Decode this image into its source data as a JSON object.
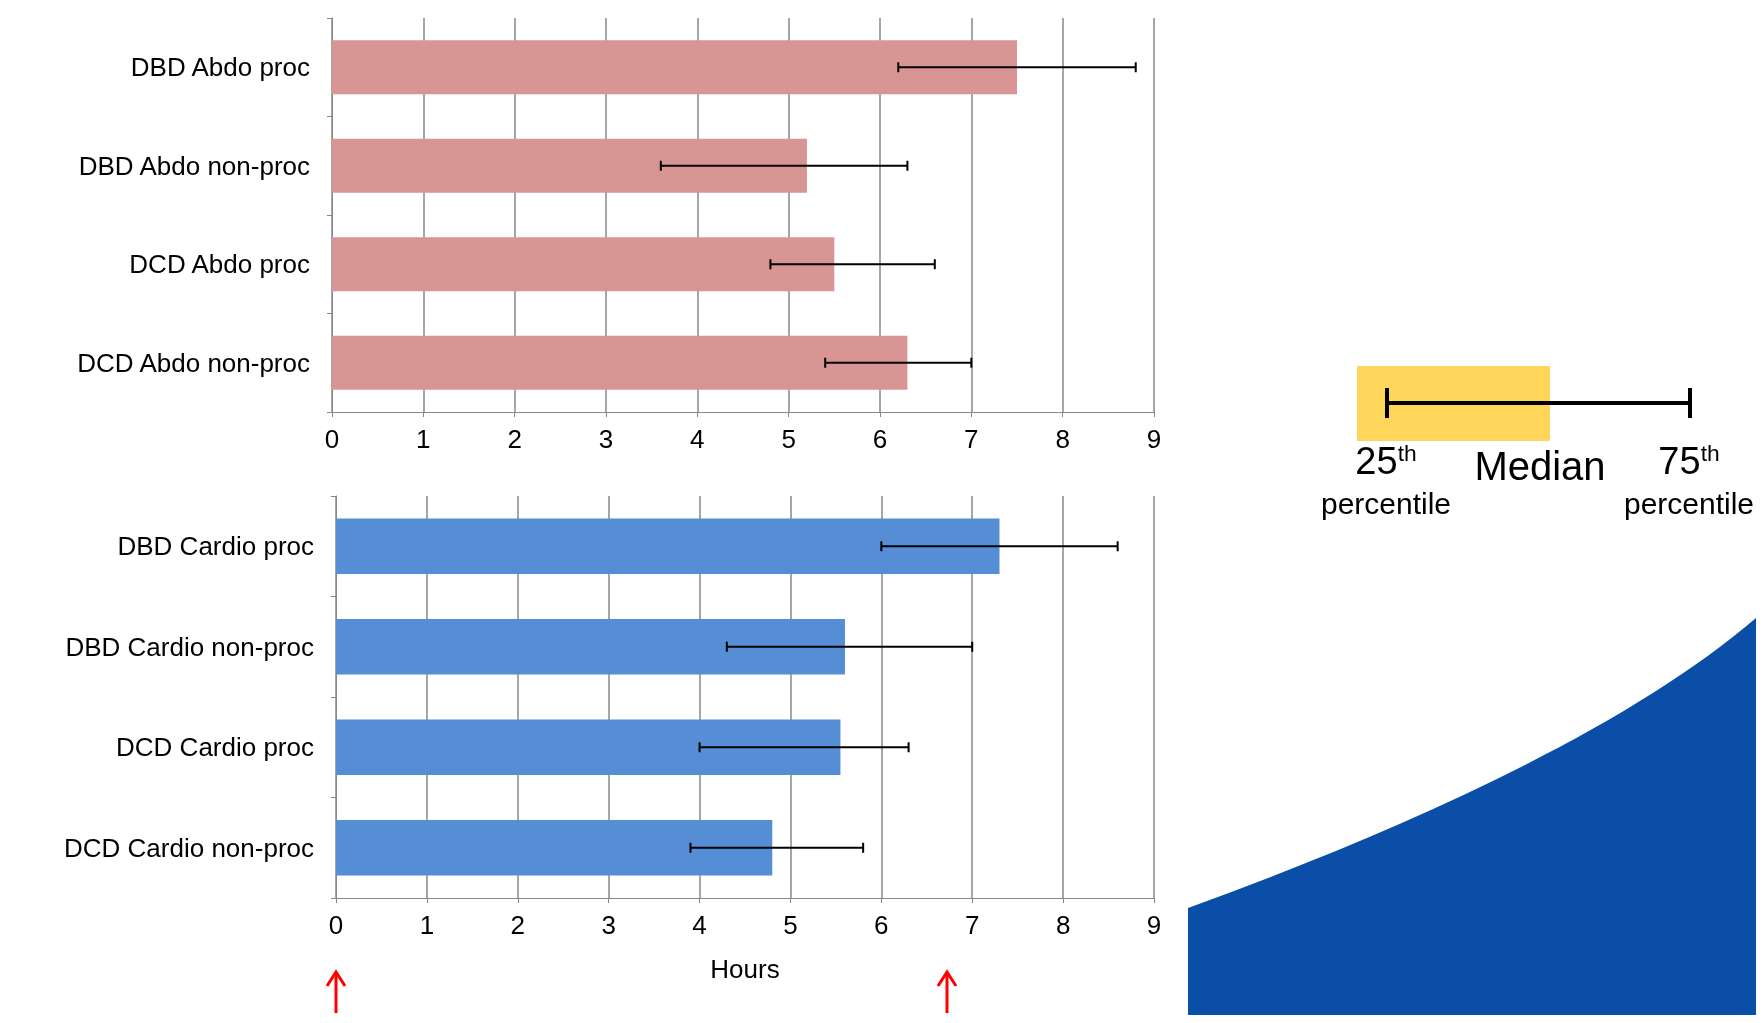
{
  "chart_data": [
    {
      "type": "bar",
      "orientation": "horizontal",
      "categories": [
        "DBD Abdo proc",
        "DBD Abdo non-proc",
        "DCD Abdo proc",
        "DCD Abdo non-proc"
      ],
      "values": [
        7.5,
        5.2,
        5.5,
        6.3
      ],
      "color": "#d99594",
      "errors": [
        [
          6.2,
          8.8
        ],
        [
          3.6,
          6.3
        ],
        [
          4.8,
          6.6
        ],
        [
          5.4,
          7.0
        ]
      ],
      "xlim": [
        0,
        9
      ],
      "xticks": [
        0,
        1,
        2,
        3,
        4,
        5,
        6,
        7,
        8,
        9
      ],
      "grid": "x",
      "annotations": [
        "25$^{th}$ percentile",
        "Median",
        "75$^{th}$ percentile"
      ]
    },
    {
      "type": "bar",
      "orientation": "horizontal",
      "categories": [
        "DBD Cardio proc",
        "DBD Cardio non-proc",
        "DCD Cardio proc",
        "DCD Cardio non-proc"
      ],
      "values": [
        7.3,
        5.6,
        5.55,
        4.8
      ],
      "color": "#558ed5",
      "errors": [
        [
          6.0,
          8.6
        ],
        [
          4.3,
          7.0
        ],
        [
          4.0,
          6.3
        ],
        [
          3.9,
          5.8
        ]
      ],
      "xlim": [
        0,
        9
      ],
      "xticks": [
        0,
        1,
        2,
        3,
        4,
        5,
        6,
        7,
        8,
        9
      ],
      "grid": "x",
      "xlabel": "Hours"
    }
  ]
}
